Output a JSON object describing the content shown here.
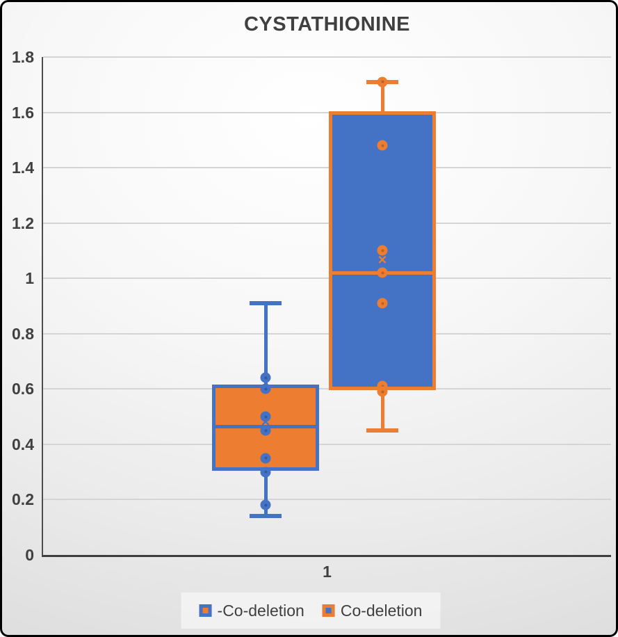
{
  "chart_data": {
    "type": "box",
    "title": "CYSTATHIONINE",
    "x_categories": [
      "1"
    ],
    "ylim": [
      0,
      1.8
    ],
    "y_tick_step": 0.2,
    "y_ticks": [
      "0",
      "0.2",
      "0.4",
      "0.6",
      "0.8",
      "1",
      "1.2",
      "1.4",
      "1.6",
      "1.8"
    ],
    "grid": true,
    "legend_position": "bottom",
    "colors": {
      "blue": "#4472C4",
      "orange": "#ED7D31"
    },
    "series": [
      {
        "name": "-Co-deletion",
        "line_color": "#4472C4",
        "fill_color": "#ED7D31",
        "whisker_low": 0.14,
        "q1": 0.31,
        "median": 0.465,
        "q3": 0.61,
        "whisker_high": 0.91,
        "mean": 0.48,
        "points": [
          0.64,
          0.6,
          0.5,
          0.45,
          0.35,
          0.3,
          0.18
        ]
      },
      {
        "name": "Co-deletion",
        "line_color": "#ED7D31",
        "fill_color": "#4472C4",
        "whisker_low": 0.45,
        "q1": 0.6,
        "median": 1.02,
        "q3": 1.6,
        "whisker_high": 1.71,
        "mean": 1.065,
        "points": [
          1.71,
          1.48,
          1.1,
          1.02,
          0.91,
          0.61,
          0.59
        ]
      }
    ]
  }
}
